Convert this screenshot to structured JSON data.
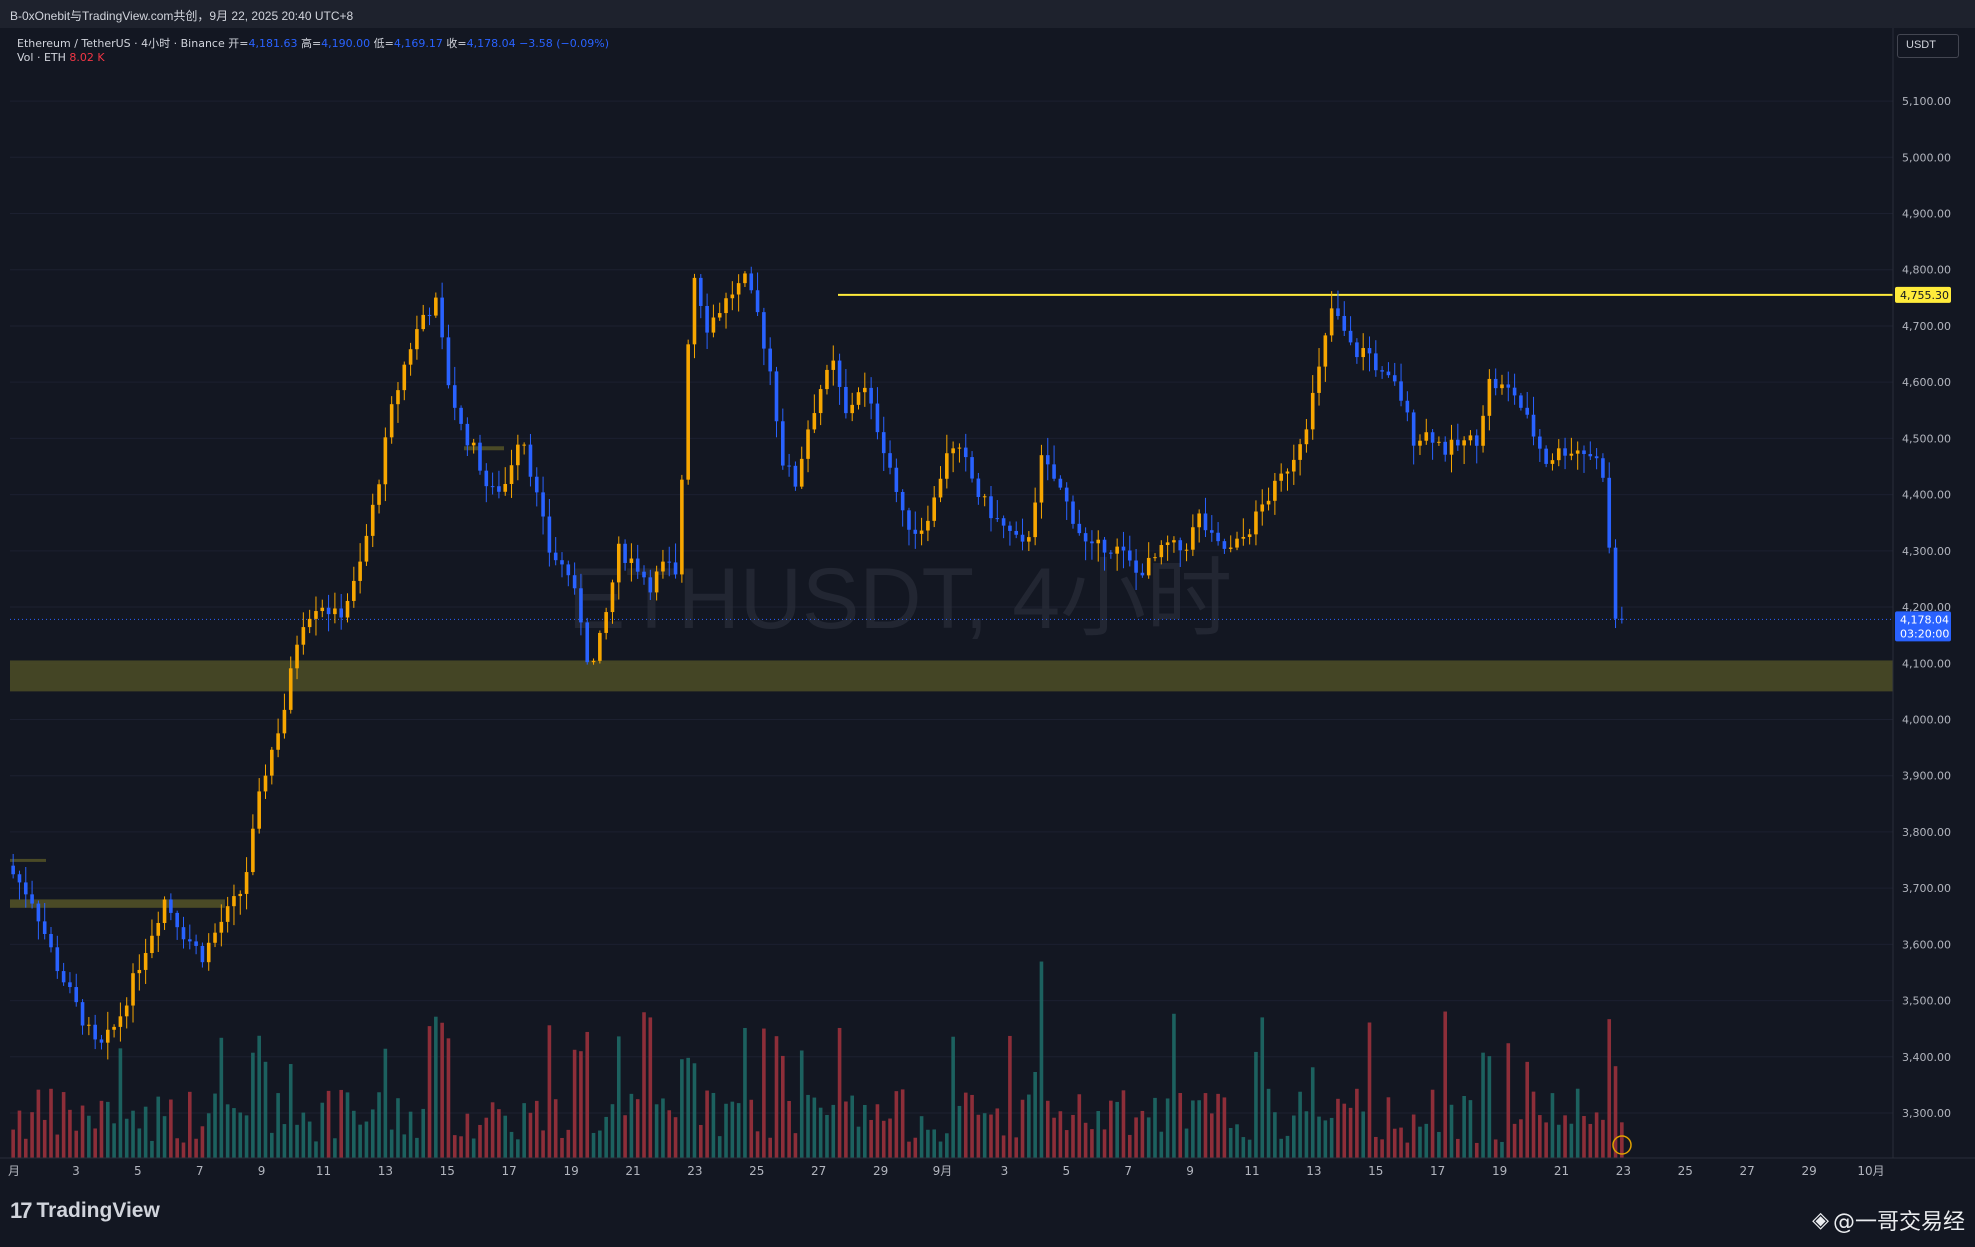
{
  "share_header": "B-0xOnebit与TradingView.com共创，9月 22, 2025 20:40 UTC+8",
  "legend": {
    "symbol": "Ethereum / TetherUS · 4小时 · Binance",
    "open_label": "开=",
    "open": "4,181.63",
    "high_label": "高=",
    "high": "4,190.00",
    "low_label": "低=",
    "low": "4,169.17",
    "close_label": "收=",
    "close": "4,178.04",
    "change": "−3.58 (−0.09%)",
    "vol_label": "Vol · ETH",
    "vol_value": "8.02 K"
  },
  "watermark": "ETHUSDT, 4小时",
  "currency_unit": "USDT",
  "brand": {
    "logo": "TradingView",
    "author": "@一哥交易经"
  },
  "colors": {
    "background": "#131722",
    "up": "#f7a600",
    "down": "#2962ff",
    "vol_up": "#1f6f6a",
    "vol_down": "#a3333d",
    "resistance": "#ffeb3b",
    "support_zone": "#4a4a26",
    "price_label_bg": "#2962ff"
  },
  "chart_data": {
    "type": "candlestick",
    "symbol": "ETHUSDT",
    "interval": "4小时",
    "y_axis": {
      "min": 3220,
      "max": 5230,
      "ticks": [
        "3,300.00",
        "3,400.00",
        "3,500.00",
        "3,600.00",
        "3,700.00",
        "3,800.00",
        "3,900.00",
        "4,000.00",
        "4,100.00",
        "4,200.00",
        "4,300.00",
        "4,400.00",
        "4,500.00",
        "4,600.00",
        "4,700.00",
        "4,800.00",
        "4,900.00",
        "5,000.00",
        "5,100.00"
      ]
    },
    "x_axis": {
      "ticks": [
        "月",
        "3",
        "5",
        "7",
        "9",
        "11",
        "13",
        "15",
        "17",
        "19",
        "21",
        "23",
        "25",
        "27",
        "29",
        "9月",
        "3",
        "5",
        "7",
        "9",
        "11",
        "13",
        "15",
        "17",
        "19",
        "21",
        "23",
        "25",
        "27",
        "29",
        "10月"
      ]
    },
    "price_path": [
      {
        "x": 0,
        "y": 3740
      },
      {
        "x": 16,
        "y": 3680
      },
      {
        "x": 32,
        "y": 3560
      },
      {
        "x": 44,
        "y": 3490
      },
      {
        "x": 58,
        "y": 3410
      },
      {
        "x": 70,
        "y": 3460
      },
      {
        "x": 86,
        "y": 3580
      },
      {
        "x": 100,
        "y": 3680
      },
      {
        "x": 112,
        "y": 3620
      },
      {
        "x": 124,
        "y": 3580
      },
      {
        "x": 136,
        "y": 3640
      },
      {
        "x": 150,
        "y": 3700
      },
      {
        "x": 162,
        "y": 3890
      },
      {
        "x": 176,
        "y": 4020
      },
      {
        "x": 186,
        "y": 4170
      },
      {
        "x": 198,
        "y": 4210
      },
      {
        "x": 210,
        "y": 4180
      },
      {
        "x": 222,
        "y": 4250
      },
      {
        "x": 234,
        "y": 4400
      },
      {
        "x": 244,
        "y": 4550
      },
      {
        "x": 254,
        "y": 4650
      },
      {
        "x": 264,
        "y": 4720
      },
      {
        "x": 272,
        "y": 4740
      },
      {
        "x": 280,
        "y": 4600
      },
      {
        "x": 288,
        "y": 4520
      },
      {
        "x": 298,
        "y": 4470
      },
      {
        "x": 306,
        "y": 4400
      },
      {
        "x": 316,
        "y": 4420
      },
      {
        "x": 326,
        "y": 4520
      },
      {
        "x": 334,
        "y": 4420
      },
      {
        "x": 344,
        "y": 4300
      },
      {
        "x": 356,
        "y": 4260
      },
      {
        "x": 364,
        "y": 4180
      },
      {
        "x": 370,
        "y": 4080
      },
      {
        "x": 378,
        "y": 4160
      },
      {
        "x": 388,
        "y": 4300
      },
      {
        "x": 398,
        "y": 4280
      },
      {
        "x": 408,
        "y": 4240
      },
      {
        "x": 418,
        "y": 4280
      },
      {
        "x": 426,
        "y": 4240
      },
      {
        "x": 430,
        "y": 4620
      },
      {
        "x": 436,
        "y": 4790
      },
      {
        "x": 444,
        "y": 4700
      },
      {
        "x": 452,
        "y": 4730
      },
      {
        "x": 460,
        "y": 4760
      },
      {
        "x": 468,
        "y": 4780
      },
      {
        "x": 476,
        "y": 4720
      },
      {
        "x": 484,
        "y": 4620
      },
      {
        "x": 492,
        "y": 4460
      },
      {
        "x": 500,
        "y": 4420
      },
      {
        "x": 508,
        "y": 4520
      },
      {
        "x": 516,
        "y": 4590
      },
      {
        "x": 524,
        "y": 4630
      },
      {
        "x": 532,
        "y": 4540
      },
      {
        "x": 542,
        "y": 4600
      },
      {
        "x": 552,
        "y": 4520
      },
      {
        "x": 560,
        "y": 4450
      },
      {
        "x": 568,
        "y": 4360
      },
      {
        "x": 578,
        "y": 4330
      },
      {
        "x": 588,
        "y": 4390
      },
      {
        "x": 596,
        "y": 4480
      },
      {
        "x": 606,
        "y": 4470
      },
      {
        "x": 616,
        "y": 4400
      },
      {
        "x": 626,
        "y": 4360
      },
      {
        "x": 636,
        "y": 4330
      },
      {
        "x": 646,
        "y": 4300
      },
      {
        "x": 656,
        "y": 4460
      },
      {
        "x": 666,
        "y": 4420
      },
      {
        "x": 676,
        "y": 4360
      },
      {
        "x": 686,
        "y": 4300
      },
      {
        "x": 696,
        "y": 4310
      },
      {
        "x": 706,
        "y": 4300
      },
      {
        "x": 716,
        "y": 4260
      },
      {
        "x": 726,
        "y": 4280
      },
      {
        "x": 736,
        "y": 4310
      },
      {
        "x": 746,
        "y": 4300
      },
      {
        "x": 756,
        "y": 4360
      },
      {
        "x": 766,
        "y": 4310
      },
      {
        "x": 776,
        "y": 4300
      },
      {
        "x": 786,
        "y": 4330
      },
      {
        "x": 796,
        "y": 4380
      },
      {
        "x": 806,
        "y": 4420
      },
      {
        "x": 816,
        "y": 4470
      },
      {
        "x": 824,
        "y": 4530
      },
      {
        "x": 832,
        "y": 4620
      },
      {
        "x": 840,
        "y": 4730
      },
      {
        "x": 846,
        "y": 4700
      },
      {
        "x": 854,
        "y": 4650
      },
      {
        "x": 862,
        "y": 4660
      },
      {
        "x": 872,
        "y": 4610
      },
      {
        "x": 882,
        "y": 4590
      },
      {
        "x": 892,
        "y": 4500
      },
      {
        "x": 902,
        "y": 4510
      },
      {
        "x": 912,
        "y": 4480
      },
      {
        "x": 922,
        "y": 4490
      },
      {
        "x": 932,
        "y": 4500
      },
      {
        "x": 940,
        "y": 4600
      },
      {
        "x": 948,
        "y": 4590
      },
      {
        "x": 956,
        "y": 4580
      },
      {
        "x": 966,
        "y": 4520
      },
      {
        "x": 976,
        "y": 4460
      },
      {
        "x": 986,
        "y": 4480
      },
      {
        "x": 996,
        "y": 4480
      },
      {
        "x": 1006,
        "y": 4470
      },
      {
        "x": 1012,
        "y": 4440
      },
      {
        "x": 1016,
        "y": 4300
      },
      {
        "x": 1020,
        "y": 4180
      },
      {
        "x": 1024,
        "y": 4178
      }
    ],
    "last_price": "4,178.04",
    "countdown": "03:20:00",
    "resistance": {
      "price": 4755.3,
      "label": "4,755.30"
    },
    "support_zone": {
      "from": 4050,
      "to": 4105
    },
    "minor_zone": {
      "from": 3665,
      "to": 3680
    }
  }
}
